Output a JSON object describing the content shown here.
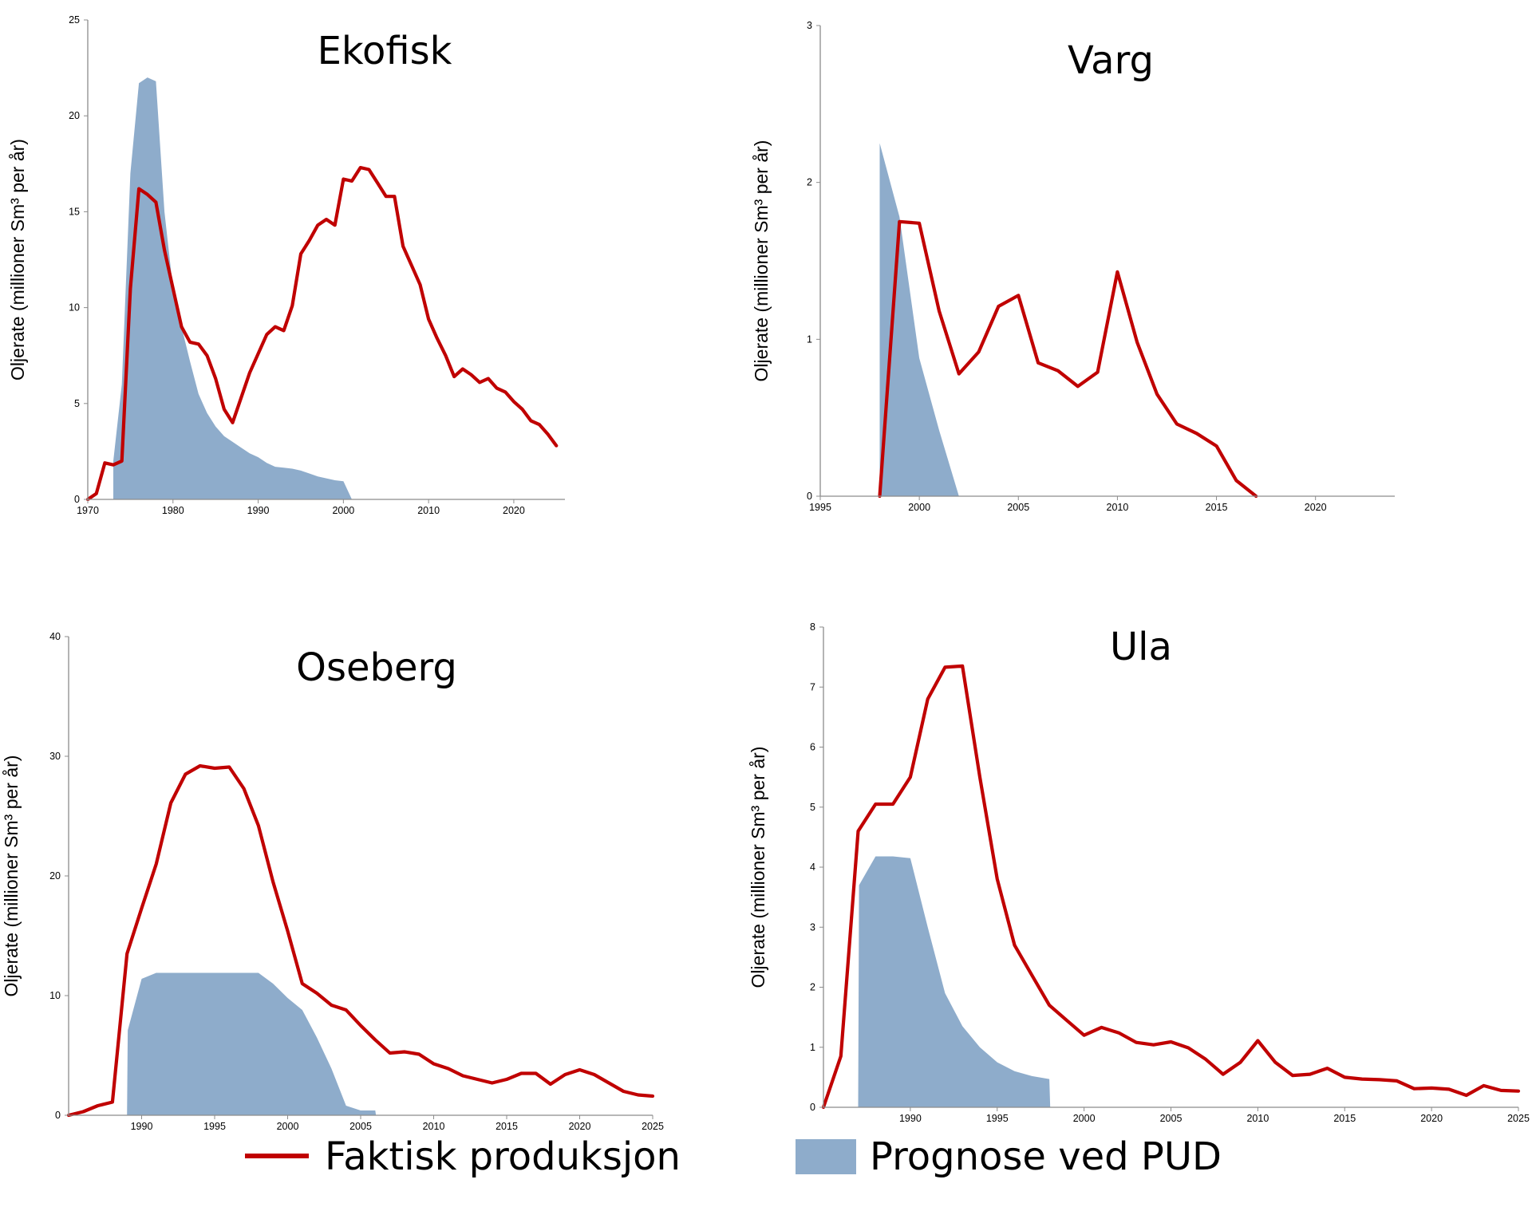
{
  "colors": {
    "actual": "#c00000",
    "forecast": "#8eaccb"
  },
  "legend": {
    "actual_label": "Faktisk produksjon",
    "forecast_label": "Prognose ved PUD"
  },
  "chart_data": [
    {
      "type": "area",
      "title": "Ekofisk",
      "ylabel": "Oljerate (millioner Sm³ per år)",
      "xlim": [
        1970,
        2026
      ],
      "ylim": [
        0,
        25
      ],
      "xticks": [
        1970,
        1980,
        1990,
        2000,
        2010,
        2020
      ],
      "yticks": [
        0,
        5,
        10,
        15,
        20,
        25
      ],
      "series": [
        {
          "key": "actual",
          "style": "line",
          "x": [
            1970,
            1971,
            1972,
            1973,
            1974,
            1975,
            1976,
            1977,
            1978,
            1979,
            1980,
            1981,
            1982,
            1983,
            1984,
            1985,
            1986,
            1987,
            1988,
            1989,
            1990,
            1991,
            1992,
            1993,
            1994,
            1995,
            1996,
            1997,
            1998,
            1999,
            2000,
            2001,
            2002,
            2003,
            2004,
            2005,
            2006,
            2007,
            2008,
            2009,
            2010,
            2011,
            2012,
            2013,
            2014,
            2015,
            2016,
            2017,
            2018,
            2019,
            2020,
            2021,
            2022,
            2023,
            2024,
            2025
          ],
          "y": [
            0,
            0.3,
            1.9,
            1.8,
            2.0,
            11.0,
            16.2,
            15.9,
            15.5,
            13.0,
            11.0,
            9.0,
            8.2,
            8.1,
            7.5,
            6.3,
            4.7,
            4.0,
            5.3,
            6.6,
            7.6,
            8.6,
            9.0,
            8.8,
            10.1,
            12.8,
            13.5,
            14.3,
            14.6,
            14.3,
            16.7,
            16.6,
            17.3,
            17.2,
            16.5,
            15.8,
            15.8,
            13.2,
            12.2,
            11.2,
            9.4,
            8.4,
            7.5,
            6.4,
            6.8,
            6.5,
            6.1,
            6.3,
            5.8,
            5.6,
            5.1,
            4.7,
            4.1,
            3.9,
            3.4,
            2.8
          ]
        },
        {
          "key": "forecast",
          "style": "area",
          "x": [
            1973,
            1974,
            1975,
            1976,
            1977,
            1978,
            1979,
            1980,
            1981,
            1982,
            1983,
            1984,
            1985,
            1986,
            1987,
            1988,
            1989,
            1990,
            1991,
            1992,
            1993,
            1994,
            1995,
            1996,
            1997,
            1998,
            1999,
            2000,
            2001
          ],
          "y": [
            2.0,
            6.0,
            17.0,
            21.7,
            22.0,
            21.8,
            15.0,
            11.0,
            9.0,
            7.2,
            5.5,
            4.5,
            3.8,
            3.3,
            3.0,
            2.7,
            2.4,
            2.2,
            1.9,
            1.7,
            1.65,
            1.6,
            1.5,
            1.35,
            1.2,
            1.1,
            1.0,
            0.95,
            0
          ]
        }
      ]
    },
    {
      "type": "area",
      "title": "Varg",
      "ylabel": "Oljerate (millioner Sm³ per år)",
      "xlim": [
        1995,
        2024
      ],
      "ylim": [
        0,
        3
      ],
      "xticks": [
        1995,
        2000,
        2005,
        2010,
        2015,
        2020
      ],
      "yticks": [
        0,
        1,
        2,
        3
      ],
      "series": [
        {
          "key": "actual",
          "style": "line",
          "x": [
            1998,
            1999,
            2000,
            2001,
            2002,
            2003,
            2004,
            2005,
            2006,
            2007,
            2008,
            2009,
            2010,
            2011,
            2012,
            2013,
            2014,
            2015,
            2016,
            2017
          ],
          "y": [
            0,
            1.75,
            1.74,
            1.18,
            0.78,
            0.92,
            1.21,
            1.28,
            0.85,
            0.8,
            0.7,
            0.79,
            1.43,
            0.98,
            0.65,
            0.46,
            0.4,
            0.32,
            0.1,
            0
          ]
        },
        {
          "key": "forecast",
          "style": "area",
          "x": [
            1998,
            1999,
            2000,
            2001,
            2002
          ],
          "y": [
            2.25,
            1.78,
            0.88,
            0.42,
            0
          ]
        }
      ]
    },
    {
      "type": "area",
      "title": "Oseberg",
      "ylabel": "Oljerate (millioner Sm³ per år)",
      "xlim": [
        1985,
        2025
      ],
      "ylim": [
        0,
        40
      ],
      "xticks": [
        1990,
        1995,
        2000,
        2005,
        2010,
        2015,
        2020,
        2025
      ],
      "yticks": [
        0,
        10,
        20,
        30,
        40
      ],
      "series": [
        {
          "key": "actual",
          "style": "line",
          "x": [
            1985,
            1986,
            1987,
            1988,
            1989,
            1990,
            1991,
            1992,
            1993,
            1994,
            1995,
            1996,
            1997,
            1998,
            1999,
            2000,
            2001,
            2002,
            2003,
            2004,
            2005,
            2006,
            2007,
            2008,
            2009,
            2010,
            2011,
            2012,
            2013,
            2014,
            2015,
            2016,
            2017,
            2018,
            2019,
            2020,
            2021,
            2022,
            2023,
            2024,
            2025
          ],
          "y": [
            0,
            0.3,
            0.8,
            1.1,
            13.5,
            17.3,
            21.0,
            26.1,
            28.5,
            29.2,
            29.0,
            29.1,
            27.3,
            24.2,
            19.5,
            15.4,
            11.0,
            10.2,
            9.2,
            8.8,
            7.5,
            6.3,
            5.2,
            5.3,
            5.1,
            4.3,
            3.9,
            3.3,
            3.0,
            2.7,
            3.0,
            3.5,
            3.5,
            2.6,
            3.4,
            3.8,
            3.4,
            2.7,
            2.0,
            1.7,
            1.6
          ]
        },
        {
          "key": "forecast",
          "style": "area",
          "x": [
            1989,
            1989.05,
            1990,
            1991,
            1992,
            1993,
            1994,
            1995,
            1996,
            1997,
            1998,
            1999,
            2000,
            2001,
            2002,
            2003,
            2004,
            2005,
            2006,
            2006.05
          ],
          "y": [
            0,
            7.1,
            11.4,
            11.9,
            11.9,
            11.9,
            11.9,
            11.9,
            11.9,
            11.9,
            11.9,
            11.0,
            9.8,
            8.8,
            6.5,
            3.9,
            0.8,
            0.4,
            0.4,
            0
          ]
        }
      ]
    },
    {
      "type": "area",
      "title": "Ula",
      "ylabel": "Oljerate (millioner Sm³ per år)",
      "xlim": [
        1985,
        2025
      ],
      "ylim": [
        0,
        8
      ],
      "xticks": [
        1990,
        1995,
        2000,
        2005,
        2010,
        2015,
        2020,
        2025
      ],
      "yticks": [
        0,
        1,
        2,
        3,
        4,
        5,
        6,
        7,
        8
      ],
      "series": [
        {
          "key": "actual",
          "style": "line",
          "x": [
            1985,
            1986,
            1987,
            1988,
            1989,
            1990,
            1991,
            1992,
            1993,
            1994,
            1995,
            1996,
            1997,
            1998,
            1999,
            2000,
            2001,
            2002,
            2003,
            2004,
            2005,
            2006,
            2007,
            2008,
            2009,
            2010,
            2011,
            2012,
            2013,
            2014,
            2015,
            2016,
            2017,
            2018,
            2019,
            2020,
            2021,
            2022,
            2023,
            2024,
            2025
          ],
          "y": [
            0,
            0.85,
            4.6,
            5.05,
            5.05,
            5.5,
            6.8,
            7.33,
            7.35,
            5.5,
            3.8,
            2.7,
            2.2,
            1.7,
            1.45,
            1.2,
            1.33,
            1.24,
            1.08,
            1.04,
            1.09,
            0.99,
            0.8,
            0.55,
            0.75,
            1.11,
            0.75,
            0.53,
            0.55,
            0.65,
            0.5,
            0.47,
            0.46,
            0.44,
            0.31,
            0.32,
            0.3,
            0.2,
            0.36,
            0.28,
            0.27
          ]
        },
        {
          "key": "forecast",
          "style": "area",
          "x": [
            1987,
            1987.05,
            1988,
            1989,
            1990,
            1991,
            1992,
            1993,
            1994,
            1995,
            1996,
            1997,
            1998,
            1998.05
          ],
          "y": [
            0,
            3.7,
            4.18,
            4.18,
            4.15,
            3.0,
            1.9,
            1.35,
            1.0,
            0.75,
            0.6,
            0.52,
            0.47,
            0
          ]
        }
      ]
    }
  ]
}
